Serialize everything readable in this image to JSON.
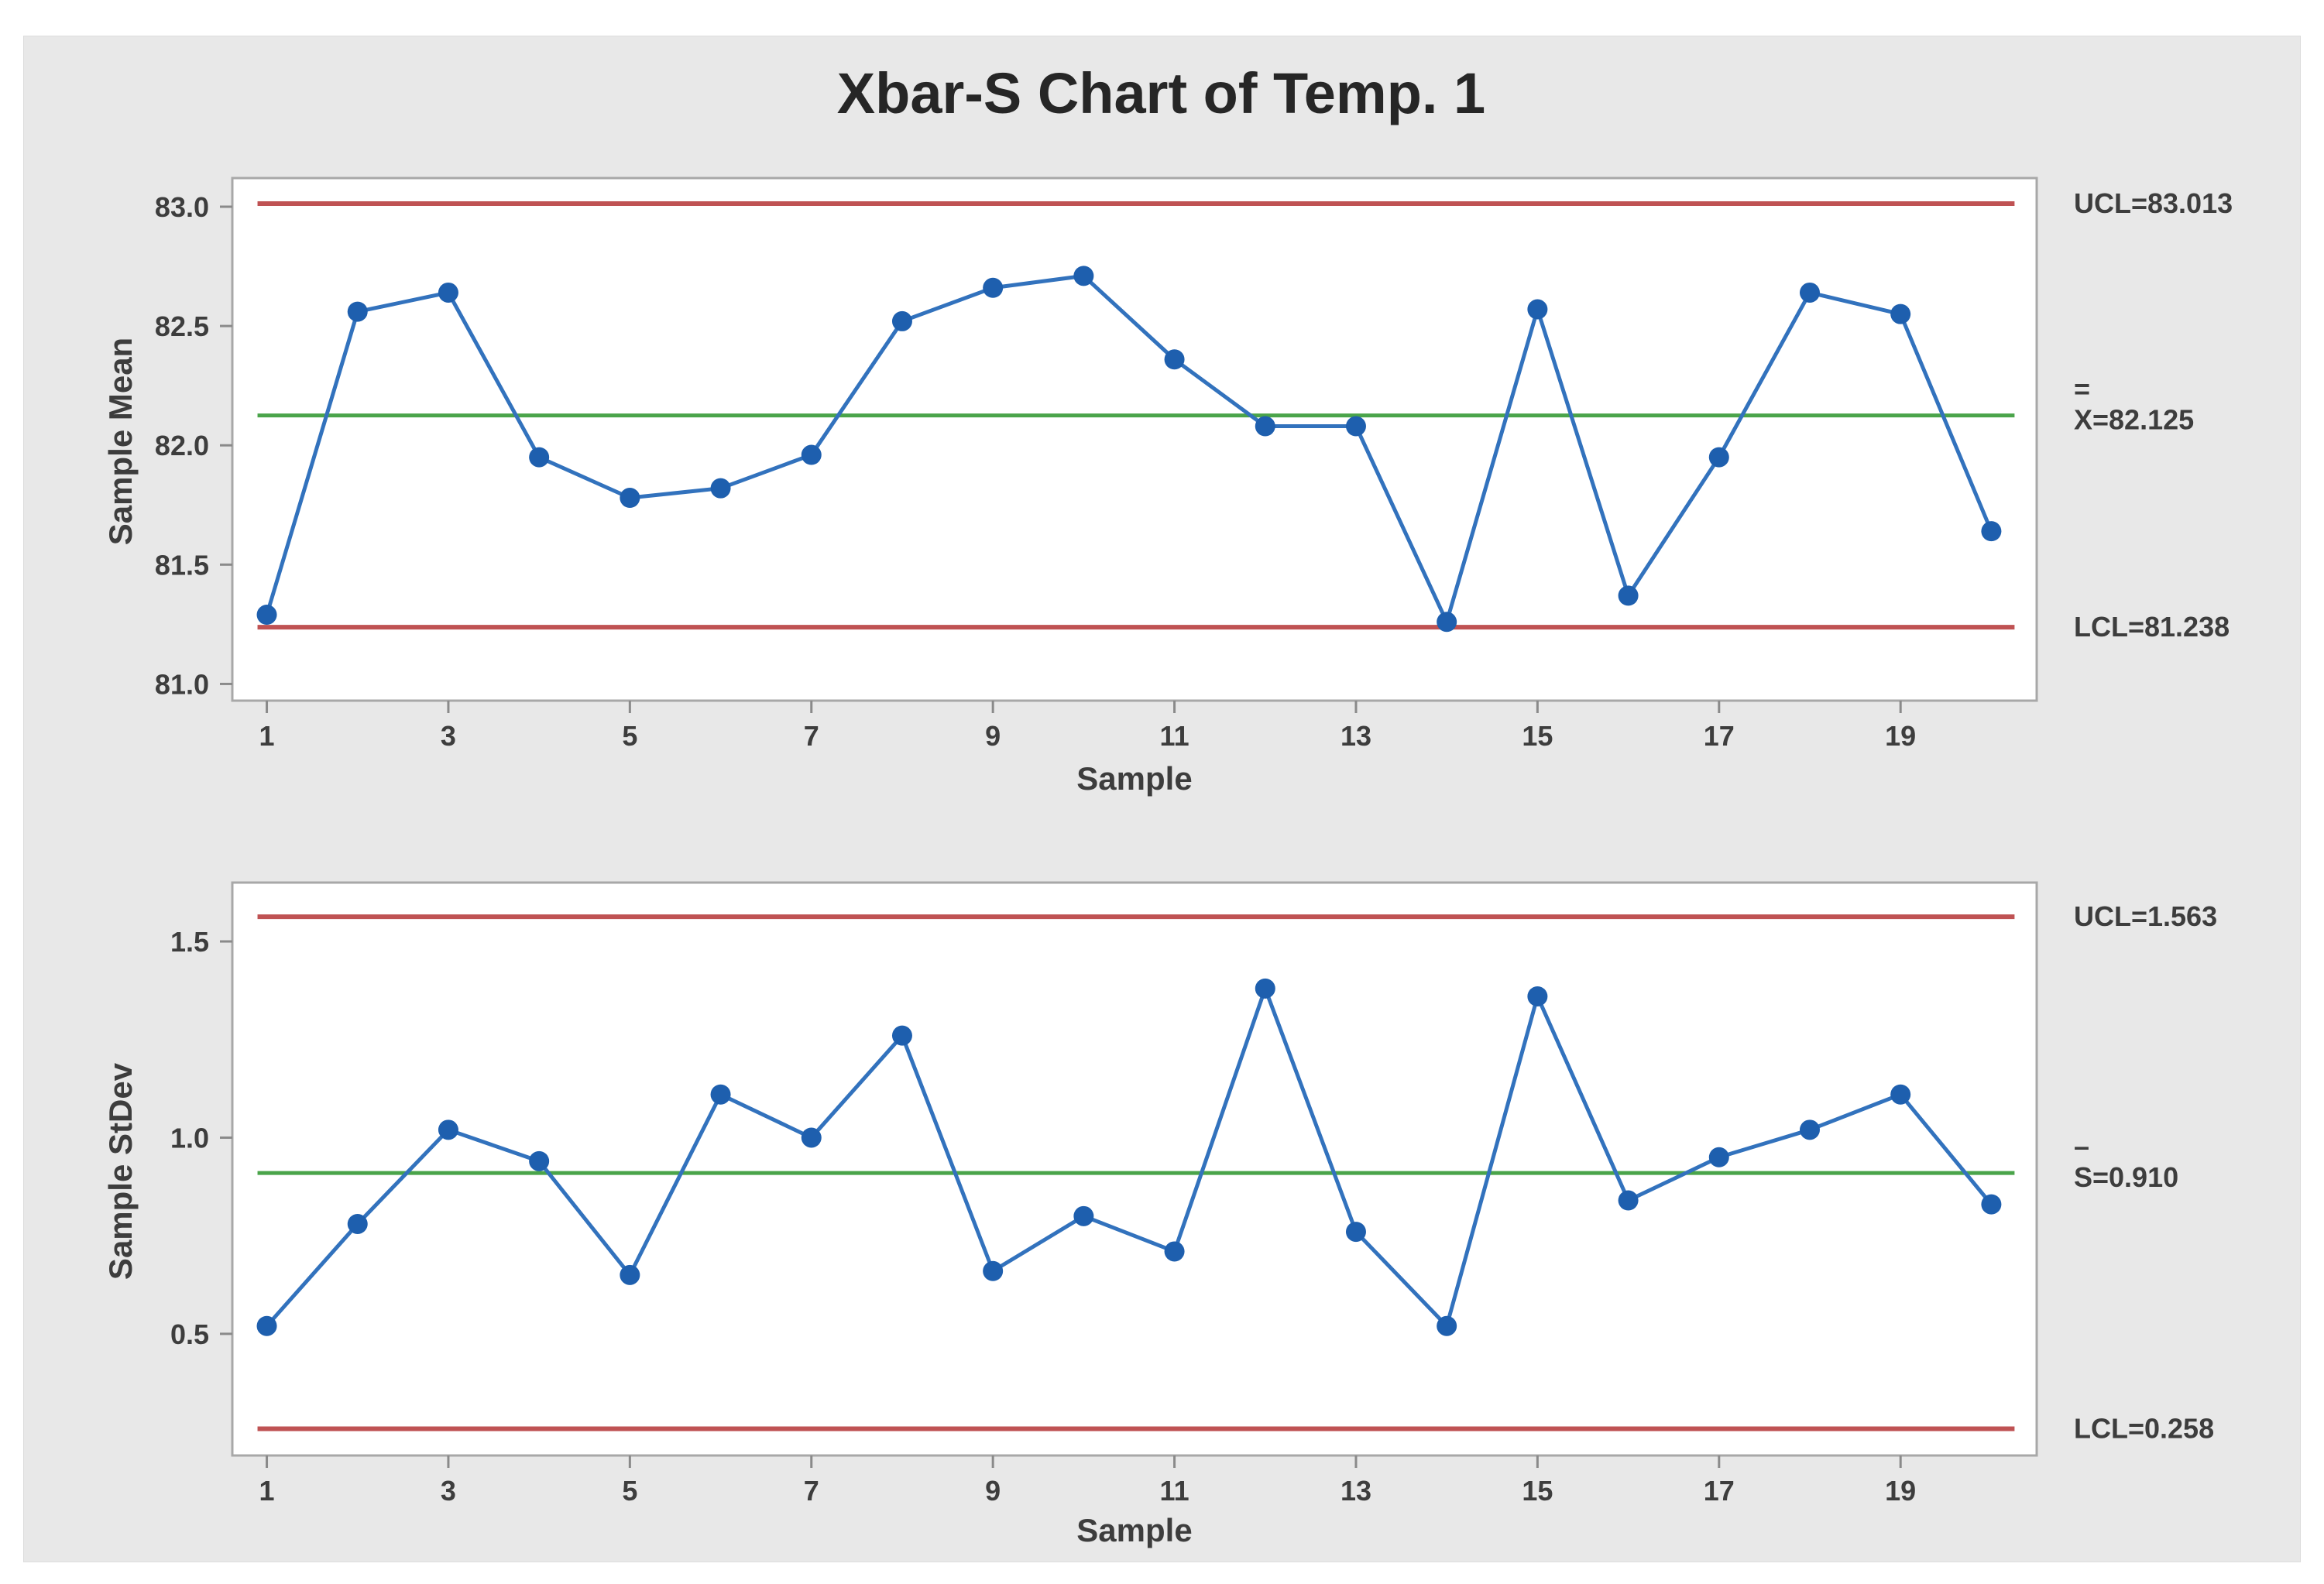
{
  "title": "Xbar-S Chart of Temp. 1",
  "colors": {
    "panel_bg": "#e8e8e8",
    "plot_bg": "#ffffff",
    "plot_border": "#a8a8a8",
    "series_blue": "#3272bd",
    "marker_blue": "#1e5fae",
    "limit_red": "#bf5253",
    "center_green": "#4aa44a",
    "tick_mark": "#8a8a8a",
    "text": "#3d3d3d"
  },
  "chart_data": [
    {
      "type": "line",
      "name": "xbar-chart",
      "ylabel": "Sample Mean",
      "xlabel": "Sample",
      "x": [
        1,
        2,
        3,
        4,
        5,
        6,
        7,
        8,
        9,
        10,
        11,
        12,
        13,
        14,
        15,
        16,
        17,
        18,
        19,
        20
      ],
      "values": [
        81.29,
        82.56,
        82.64,
        81.95,
        81.78,
        81.82,
        81.96,
        82.52,
        82.66,
        82.71,
        82.36,
        82.08,
        82.08,
        81.26,
        82.57,
        81.37,
        81.95,
        82.64,
        82.55,
        81.64
      ],
      "ucl": 83.013,
      "center": 82.125,
      "lcl": 81.238,
      "ucl_label": "UCL=83.013",
      "center_label_prefix": "=",
      "center_label": "X=82.125",
      "lcl_label": "LCL=81.238",
      "ytick_values": [
        83.0,
        82.5,
        82.0,
        81.5,
        81.0
      ],
      "ytick_labels": [
        "83.0",
        "82.5",
        "82.0",
        "81.5",
        "81.0"
      ],
      "xtick_values": [
        1,
        3,
        5,
        7,
        9,
        11,
        13,
        15,
        17,
        19
      ],
      "ylim": [
        80.93,
        83.12
      ],
      "xlim": [
        0.62,
        20.5
      ],
      "grid": false,
      "legend": null
    },
    {
      "type": "line",
      "name": "s-chart",
      "ylabel": "Sample StDev",
      "xlabel": "Sample",
      "x": [
        1,
        2,
        3,
        4,
        5,
        6,
        7,
        8,
        9,
        10,
        11,
        12,
        13,
        14,
        15,
        16,
        17,
        18,
        19,
        20
      ],
      "values": [
        0.52,
        0.78,
        1.02,
        0.94,
        0.65,
        1.11,
        1.0,
        1.26,
        0.66,
        0.8,
        0.71,
        1.38,
        0.76,
        0.52,
        1.36,
        0.84,
        0.95,
        1.02,
        1.11,
        0.83
      ],
      "ucl": 1.563,
      "center": 0.91,
      "lcl": 0.258,
      "ucl_label": "UCL=1.563",
      "center_label_prefix": "–",
      "center_label": "S=0.910",
      "lcl_label": "LCL=0.258",
      "ytick_values": [
        1.5,
        1.0,
        0.5
      ],
      "ytick_labels": [
        "1.5",
        "1.0",
        "0.5"
      ],
      "xtick_values": [
        1,
        3,
        5,
        7,
        9,
        11,
        13,
        15,
        17,
        19
      ],
      "ylim": [
        0.19,
        1.65
      ],
      "xlim": [
        0.62,
        20.5
      ],
      "grid": false,
      "legend": null
    }
  ]
}
